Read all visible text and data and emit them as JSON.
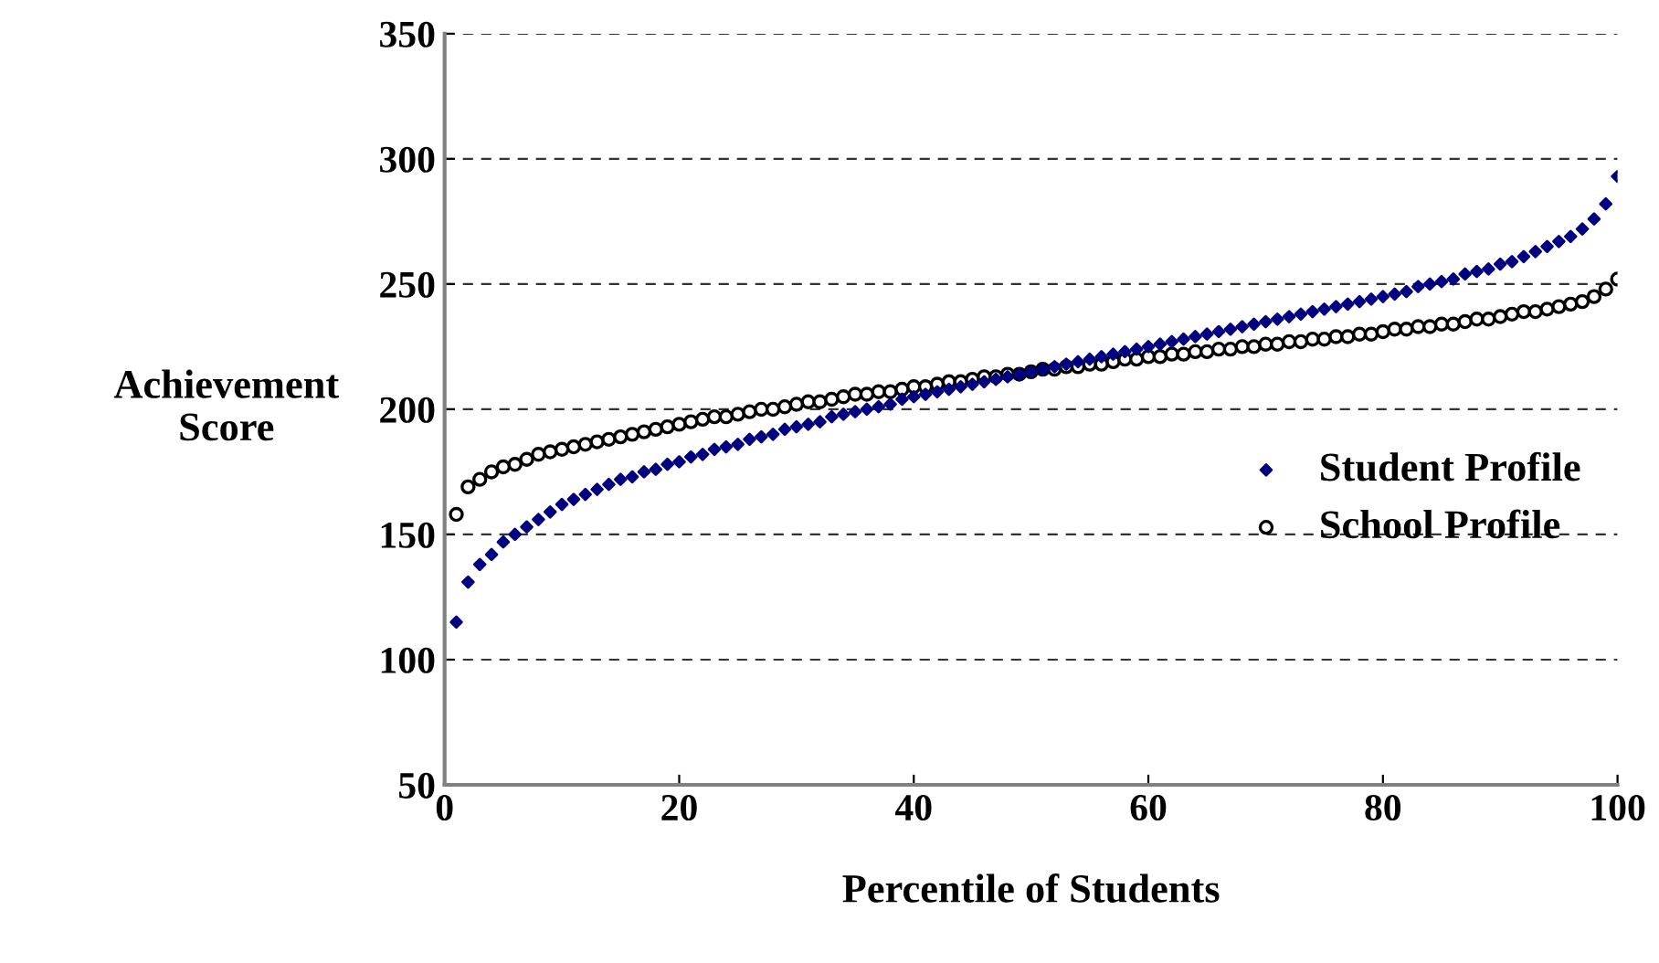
{
  "chart_data": {
    "type": "scatter",
    "xlabel": "Percentile of Students",
    "ylabel": "Achievement\nScore",
    "x": [
      1,
      2,
      3,
      4,
      5,
      6,
      7,
      8,
      9,
      10,
      11,
      12,
      13,
      14,
      15,
      16,
      17,
      18,
      19,
      20,
      21,
      22,
      23,
      24,
      25,
      26,
      27,
      28,
      29,
      30,
      31,
      32,
      33,
      34,
      35,
      36,
      37,
      38,
      39,
      40,
      41,
      42,
      43,
      44,
      45,
      46,
      47,
      48,
      49,
      50,
      51,
      52,
      53,
      54,
      55,
      56,
      57,
      58,
      59,
      60,
      61,
      62,
      63,
      64,
      65,
      66,
      67,
      68,
      69,
      70,
      71,
      72,
      73,
      74,
      75,
      76,
      77,
      78,
      79,
      80,
      81,
      82,
      83,
      84,
      85,
      86,
      87,
      88,
      89,
      90,
      91,
      92,
      93,
      94,
      95,
      96,
      97,
      98,
      99,
      100
    ],
    "series": [
      {
        "name": "Student Profile",
        "color": "#000080",
        "marker": "diamond",
        "values": [
          115,
          131,
          138,
          142,
          147,
          150,
          153,
          156,
          159,
          162,
          164,
          166,
          168,
          170,
          172,
          173,
          175,
          176,
          178,
          179,
          181,
          182,
          184,
          185,
          186,
          188,
          189,
          190,
          192,
          193,
          194,
          195,
          197,
          198,
          199,
          200,
          201,
          202,
          204,
          205,
          206,
          207,
          208,
          209,
          210,
          211,
          212,
          213,
          214,
          215,
          216,
          217,
          218,
          219,
          220,
          221,
          222,
          223,
          224,
          225,
          226,
          227,
          228,
          229,
          230,
          231,
          232,
          233,
          234,
          235,
          236,
          237,
          238,
          239,
          240,
          241,
          242,
          243,
          244,
          245,
          246,
          247,
          249,
          250,
          251,
          252,
          254,
          255,
          256,
          258,
          259,
          261,
          263,
          265,
          267,
          269,
          272,
          276,
          282,
          293
        ]
      },
      {
        "name": "School Profile",
        "color": "#000000",
        "marker": "circle",
        "values": [
          158,
          169,
          172,
          175,
          177,
          178,
          180,
          182,
          183,
          184,
          185,
          186,
          187,
          188,
          189,
          190,
          191,
          192,
          193,
          194,
          195,
          196,
          197,
          197,
          198,
          199,
          200,
          200,
          201,
          202,
          203,
          203,
          204,
          205,
          206,
          206,
          207,
          207,
          208,
          209,
          209,
          210,
          211,
          211,
          212,
          213,
          213,
          214,
          214,
          215,
          216,
          216,
          217,
          217,
          218,
          218,
          219,
          220,
          220,
          221,
          221,
          222,
          222,
          223,
          223,
          224,
          224,
          225,
          225,
          226,
          226,
          227,
          227,
          228,
          228,
          229,
          229,
          230,
          230,
          231,
          232,
          232,
          233,
          233,
          234,
          234,
          235,
          236,
          236,
          237,
          238,
          239,
          239,
          240,
          241,
          242,
          243,
          245,
          248,
          252
        ]
      }
    ],
    "xlim": [
      0,
      100
    ],
    "xticks": [
      0,
      20,
      40,
      60,
      80,
      100
    ],
    "ylim": [
      50,
      350
    ],
    "yticks": [
      50,
      100,
      150,
      200,
      250,
      300,
      350
    ],
    "grid": "y",
    "legend": "right"
  }
}
